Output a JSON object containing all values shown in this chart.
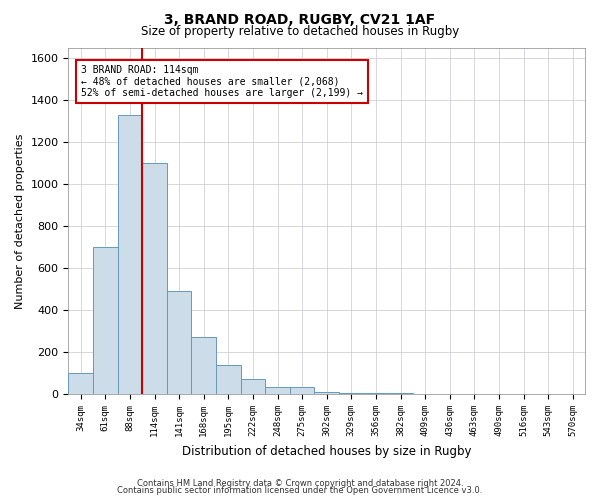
{
  "title1": "3, BRAND ROAD, RUGBY, CV21 1AF",
  "title2": "Size of property relative to detached houses in Rugby",
  "xlabel": "Distribution of detached houses by size in Rugby",
  "ylabel": "Number of detached properties",
  "footer1": "Contains HM Land Registry data © Crown copyright and database right 2024.",
  "footer2": "Contains public sector information licensed under the Open Government Licence v3.0.",
  "bar_labels": [
    "34sqm",
    "61sqm",
    "88sqm",
    "114sqm",
    "141sqm",
    "168sqm",
    "195sqm",
    "222sqm",
    "248sqm",
    "275sqm",
    "302sqm",
    "329sqm",
    "356sqm",
    "382sqm",
    "409sqm",
    "436sqm",
    "463sqm",
    "490sqm",
    "516sqm",
    "543sqm",
    "570sqm"
  ],
  "bar_values": [
    100,
    700,
    1330,
    1100,
    490,
    270,
    140,
    70,
    35,
    35,
    10,
    5,
    5,
    5,
    3,
    3,
    2,
    2,
    1,
    1,
    1
  ],
  "bar_color": "#ccdce8",
  "bar_edge_color": "#6699bb",
  "red_line_x": 2.5,
  "ylim": [
    0,
    1650
  ],
  "yticks": [
    0,
    200,
    400,
    600,
    800,
    1000,
    1200,
    1400,
    1600
  ],
  "annotation_line1": "3 BRAND ROAD: 114sqm",
  "annotation_line2": "← 48% of detached houses are smaller (2,068)",
  "annotation_line3": "52% of semi-detached houses are larger (2,199) →",
  "annotation_box_color": "#ffffff",
  "annotation_border_color": "#cc0000",
  "background_color": "#ffffff",
  "grid_color": "#c8c8d0"
}
